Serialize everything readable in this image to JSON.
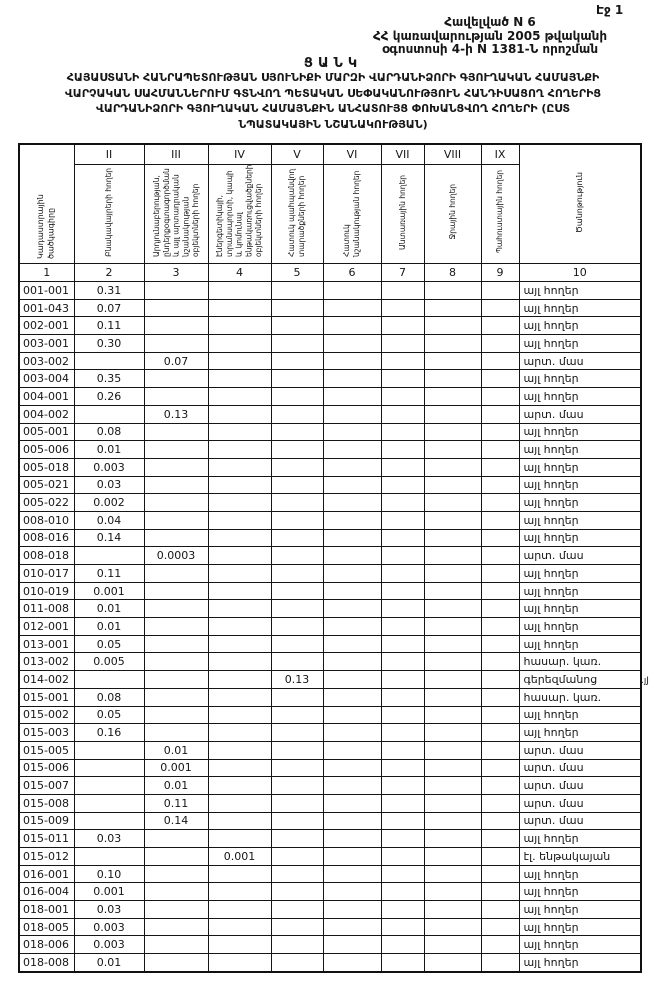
{
  "page": {
    "page_label": "Էջ 1",
    "appendix": [
      "Հավելված N 6",
      "ՀՀ կառավարության 2005 թվականի",
      "օգոստոսի 4-ի N 1381-Ն որոշման"
    ],
    "doc_type": "ՑԱՆԿ",
    "title": [
      "ՀԱՅԱՍՏԱՆԻ ՀԱՆՐԱՊԵՏՈՒԹՅԱՆ ՍՅՈՒՆԻՔԻ ՄԱՐԶԻ ՎԱՐԴԱՆԻՁՈՐԻ ԳՅՈՒՂԱԿԱՆ ՀԱՄԱՅՆՔԻ",
      "ՎԱՐՉԱԿԱՆ ՍԱՀՄԱՆՆԵՐՈՒՄ ԳՏՆՎՈՂ ՊԵՏԱԿԱՆ ՍԵՓԱԿԱՆՈՒԹՅՈՒՆ ՀԱՆԴԻՍԱՑՈՂ ՀՈՂԵՐԻՑ",
      "ՎԱՐԴԱՆԻՁՈՐԻ ԳՅՈՒՂԱԿԱՆ ՀԱՄԱՅՆՔԻՆ ԱՆՀԱՏՈՒՅՑ ՓՈԽԱՆՑՎՈՂ ՀՈՂԵՐԻ (ԸՍՏ",
      "ՆՊԱՏԱԿԱՅԻՆ ՆՇԱՆԱԿՈՒԹՅԱՆ)"
    ],
    "margin_artifact": ".յJ"
  },
  "table": {
    "romans": [
      "II",
      "III",
      "IV",
      "V",
      "VI",
      "VII",
      "VIII",
      "IX"
    ],
    "col_numbers": [
      "1",
      "2",
      "3",
      "4",
      "5",
      "6",
      "7",
      "8",
      "9",
      "10"
    ],
    "headers": {
      "col1": "Կադաստրային ծածկագիրը",
      "col2": "Բնակավայրերի հողեր",
      "col3": "Արդյունաբերության, ընդերքօգտագործման և այլ արտադրական նշանակության օբյեկտների հողեր",
      "col4": "Էներգետիկայի, տրանսպորտի, կապի և կոմունալ ենթակառուցվածքների օբյեկտների հողեր",
      "col5": "Հատուկ պահպանվող տարածքների հողեր",
      "col6": "Հատուկ նշանակության հողեր",
      "col7": "Անտառային հողեր",
      "col8": "Ջրային հողեր",
      "col9": "Պահուստային հողեր",
      "col10": "Ծանոթություն"
    },
    "rows": [
      {
        "code": "001-001",
        "values": [
          "0.31",
          "",
          "",
          "",
          "",
          "",
          "",
          ""
        ],
        "note": "այլ հողեր"
      },
      {
        "code": "001-043",
        "values": [
          "0.07",
          "",
          "",
          "",
          "",
          "",
          "",
          ""
        ],
        "note": "այլ հողեր"
      },
      {
        "code": "002-001",
        "values": [
          "0.11",
          "",
          "",
          "",
          "",
          "",
          "",
          ""
        ],
        "note": "այլ հողեր"
      },
      {
        "code": "003-001",
        "values": [
          "0.30",
          "",
          "",
          "",
          "",
          "",
          "",
          ""
        ],
        "note": "այլ հողեր"
      },
      {
        "code": "003-002",
        "values": [
          "",
          "0.07",
          "",
          "",
          "",
          "",
          "",
          ""
        ],
        "note": "արտ. մաս"
      },
      {
        "code": "003-004",
        "values": [
          "0.35",
          "",
          "",
          "",
          "",
          "",
          "",
          ""
        ],
        "note": "այլ հողեր"
      },
      {
        "code": "004-001",
        "values": [
          "0.26",
          "",
          "",
          "",
          "",
          "",
          "",
          ""
        ],
        "note": "այլ հողեր"
      },
      {
        "code": "004-002",
        "values": [
          "",
          "0.13",
          "",
          "",
          "",
          "",
          "",
          ""
        ],
        "note": "արտ. մաս"
      },
      {
        "code": "005-001",
        "values": [
          "0.08",
          "",
          "",
          "",
          "",
          "",
          "",
          ""
        ],
        "note": "այլ հողեր"
      },
      {
        "code": "005-006",
        "values": [
          "0.01",
          "",
          "",
          "",
          "",
          "",
          "",
          ""
        ],
        "note": "այլ հողեր"
      },
      {
        "code": "005-018",
        "values": [
          "0.003",
          "",
          "",
          "",
          "",
          "",
          "",
          ""
        ],
        "note": "այլ հողեր"
      },
      {
        "code": "005-021",
        "values": [
          "0.03",
          "",
          "",
          "",
          "",
          "",
          "",
          ""
        ],
        "note": "այլ հողեր"
      },
      {
        "code": "005-022",
        "values": [
          "0.002",
          "",
          "",
          "",
          "",
          "",
          "",
          ""
        ],
        "note": "այլ հողեր"
      },
      {
        "code": "008-010",
        "values": [
          "0.04",
          "",
          "",
          "",
          "",
          "",
          "",
          ""
        ],
        "note": "այլ հողեր"
      },
      {
        "code": "008-016",
        "values": [
          "0.14",
          "",
          "",
          "",
          "",
          "",
          "",
          ""
        ],
        "note": "այլ հողեր"
      },
      {
        "code": "008-018",
        "values": [
          "",
          "0.0003",
          "",
          "",
          "",
          "",
          "",
          ""
        ],
        "note": "արտ. մաս"
      },
      {
        "code": "010-017",
        "values": [
          "0.11",
          "",
          "",
          "",
          "",
          "",
          "",
          ""
        ],
        "note": "այլ հողեր"
      },
      {
        "code": "010-019",
        "values": [
          "0.001",
          "",
          "",
          "",
          "",
          "",
          "",
          ""
        ],
        "note": "այլ հողեր"
      },
      {
        "code": "011-008",
        "values": [
          "0.01",
          "",
          "",
          "",
          "",
          "",
          "",
          ""
        ],
        "note": "այլ հողեր"
      },
      {
        "code": "012-001",
        "values": [
          "0.01",
          "",
          "",
          "",
          "",
          "",
          "",
          ""
        ],
        "note": "այլ հողեր"
      },
      {
        "code": "013-001",
        "values": [
          "0.05",
          "",
          "",
          "",
          "",
          "",
          "",
          ""
        ],
        "note": "այլ հողեր"
      },
      {
        "code": "013-002",
        "values": [
          "0.005",
          "",
          "",
          "",
          "",
          "",
          "",
          ""
        ],
        "note": "հասար. կառ."
      },
      {
        "code": "014-002",
        "values": [
          "",
          "",
          "",
          "0.13",
          "",
          "",
          "",
          ""
        ],
        "note": "գերեզմանոց"
      },
      {
        "code": "015-001",
        "values": [
          "0.08",
          "",
          "",
          "",
          "",
          "",
          "",
          ""
        ],
        "note": "հասար. կառ."
      },
      {
        "code": "015-002",
        "values": [
          "0.05",
          "",
          "",
          "",
          "",
          "",
          "",
          ""
        ],
        "note": "այլ հողեր"
      },
      {
        "code": "015-003",
        "values": [
          "0.16",
          "",
          "",
          "",
          "",
          "",
          "",
          ""
        ],
        "note": "այլ հողեր"
      },
      {
        "code": "015-005",
        "values": [
          "",
          "0.01",
          "",
          "",
          "",
          "",
          "",
          ""
        ],
        "note": "արտ. մաս"
      },
      {
        "code": "015-006",
        "values": [
          "",
          "0.001",
          "",
          "",
          "",
          "",
          "",
          ""
        ],
        "note": "արտ. մաս"
      },
      {
        "code": "015-007",
        "values": [
          "",
          "0.01",
          "",
          "",
          "",
          "",
          "",
          ""
        ],
        "note": "արտ. մաս"
      },
      {
        "code": "015-008",
        "values": [
          "",
          "0.11",
          "",
          "",
          "",
          "",
          "",
          ""
        ],
        "note": "արտ. մաս"
      },
      {
        "code": "015-009",
        "values": [
          "",
          "0.14",
          "",
          "",
          "",
          "",
          "",
          ""
        ],
        "note": "արտ. մաս"
      },
      {
        "code": "015-011",
        "values": [
          "0.03",
          "",
          "",
          "",
          "",
          "",
          "",
          ""
        ],
        "note": "այլ հողեր"
      },
      {
        "code": "015-012",
        "values": [
          "",
          "",
          "0.001",
          "",
          "",
          "",
          "",
          ""
        ],
        "note": "էլ. ենթակայան"
      },
      {
        "code": "016-001",
        "values": [
          "0.10",
          "",
          "",
          "",
          "",
          "",
          "",
          ""
        ],
        "note": "այլ հողեր"
      },
      {
        "code": "016-004",
        "values": [
          "0.001",
          "",
          "",
          "",
          "",
          "",
          "",
          ""
        ],
        "note": "այլ հողեր"
      },
      {
        "code": "018-001",
        "values": [
          "0.03",
          "",
          "",
          "",
          "",
          "",
          "",
          ""
        ],
        "note": "այլ հողեր"
      },
      {
        "code": "018-005",
        "values": [
          "0.003",
          "",
          "",
          "",
          "",
          "",
          "",
          ""
        ],
        "note": "այլ հողեր"
      },
      {
        "code": "018-006",
        "values": [
          "0.003",
          "",
          "",
          "",
          "",
          "",
          "",
          ""
        ],
        "note": "այլ հողեր"
      },
      {
        "code": "018-008",
        "values": [
          "0.01",
          "",
          "",
          "",
          "",
          "",
          "",
          ""
        ],
        "note": "այլ հողեր"
      }
    ]
  }
}
